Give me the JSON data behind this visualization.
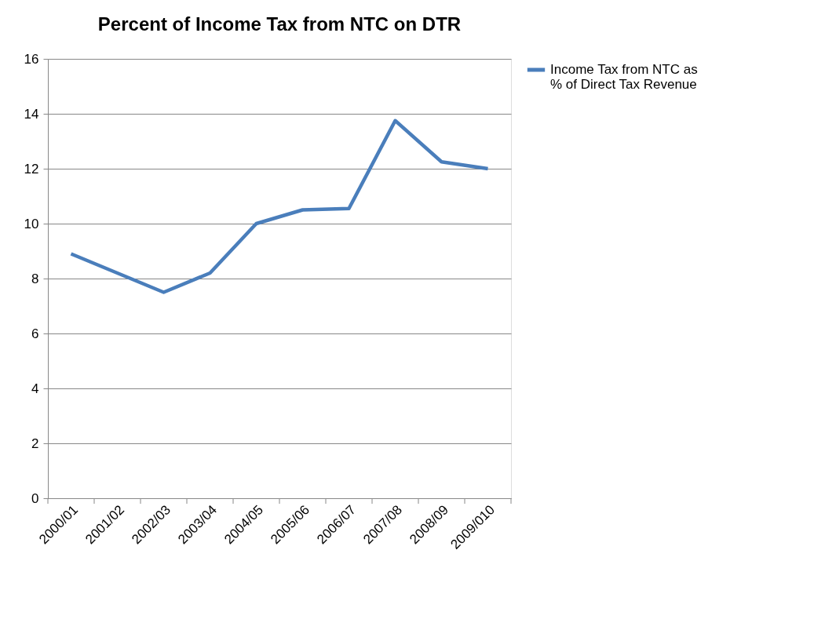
{
  "chart_data": {
    "type": "line",
    "title": "Percent of Income Tax from NTC on DTR",
    "categories": [
      "2000/01",
      "2001/02",
      "2002/03",
      "2003/04",
      "2004/05",
      "2005/06",
      "2006/07",
      "2007/08",
      "2008/09",
      "2009/010"
    ],
    "series": [
      {
        "name": "Income Tax from NTC as % of Direct  Tax Revenue",
        "color": "#4a7ebb",
        "values": [
          8.9,
          8.2,
          7.5,
          8.2,
          10.0,
          10.5,
          10.55,
          13.75,
          12.25,
          12.0
        ]
      }
    ],
    "ylim": [
      0,
      16
    ],
    "yticks": [
      0,
      2,
      4,
      6,
      8,
      10,
      12,
      14,
      16
    ],
    "grid": "y",
    "legend": "right",
    "marker": "none",
    "line_style": "solid"
  }
}
